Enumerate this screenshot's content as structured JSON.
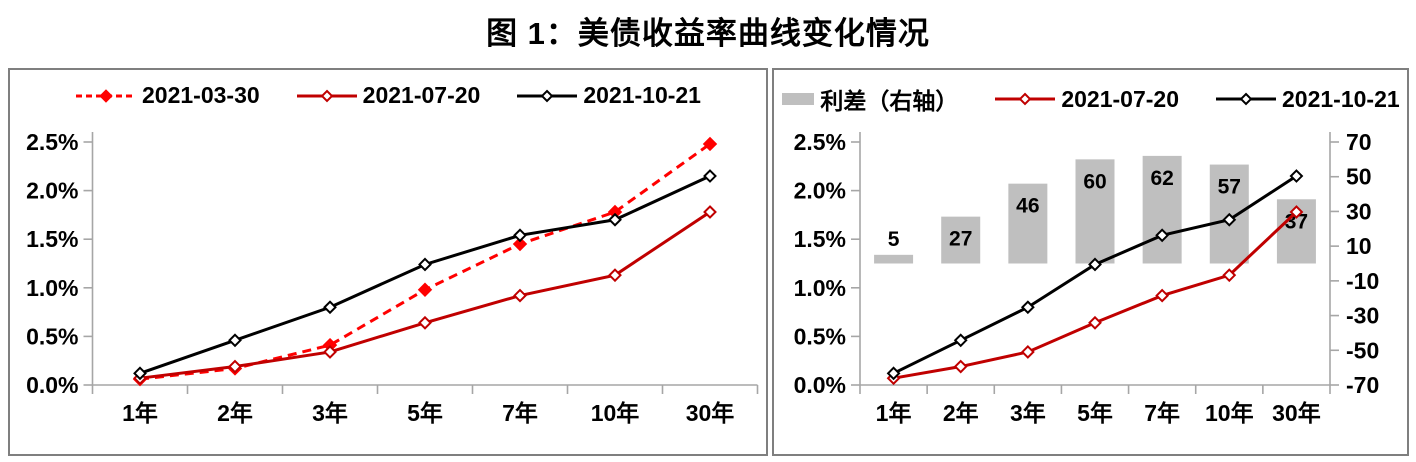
{
  "page": {
    "title": "图 1：美债收益率曲线变化情况"
  },
  "colors": {
    "red_bright": "#FF0000",
    "red_dark": "#C00000",
    "black": "#000000",
    "bar_gray": "#BFBFBF",
    "axis_gray": "#A6A6A6",
    "panel_border_gray": "#7F7F7F"
  },
  "chart_data": [
    {
      "type": "line",
      "panel": "left",
      "grid": false,
      "legend_position": "top",
      "categories": [
        "1年",
        "2年",
        "3年",
        "5年",
        "7年",
        "10年",
        "30年"
      ],
      "y_axis": {
        "min": 0,
        "max": 2.5,
        "tick_step": 0.5,
        "format": "percent",
        "tick_labels": [
          "0.0%",
          "0.5%",
          "1.0%",
          "1.5%",
          "2.0%",
          "2.5%"
        ]
      },
      "series": [
        {
          "name": "2021-03-30",
          "color": "#FF0000",
          "line_style": "dashed",
          "marker": "diamond-filled",
          "values": [
            0.06,
            0.17,
            0.41,
            0.98,
            1.45,
            1.78,
            2.48
          ]
        },
        {
          "name": "2021-07-20",
          "color": "#C00000",
          "line_style": "solid",
          "marker": "diamond-open",
          "values": [
            0.07,
            0.19,
            0.34,
            0.64,
            0.92,
            1.13,
            1.78
          ]
        },
        {
          "name": "2021-10-21",
          "color": "#000000",
          "line_style": "solid",
          "marker": "diamond-open",
          "values": [
            0.12,
            0.46,
            0.8,
            1.24,
            1.54,
            1.7,
            2.15
          ]
        }
      ]
    },
    {
      "type": "combo",
      "panel": "right",
      "grid": false,
      "legend_position": "top",
      "categories": [
        "1年",
        "2年",
        "3年",
        "5年",
        "7年",
        "10年",
        "30年"
      ],
      "y_axis_left": {
        "min": 0,
        "max": 2.5,
        "tick_step": 0.5,
        "format": "percent",
        "tick_labels": [
          "0.0%",
          "0.5%",
          "1.0%",
          "1.5%",
          "2.0%",
          "2.5%"
        ]
      },
      "y_axis_right": {
        "min": -70,
        "max": 70,
        "tick_step": 20,
        "tick_labels": [
          "-70",
          "-50",
          "-30",
          "-10",
          "10",
          "30",
          "50",
          "70"
        ]
      },
      "bar_series": {
        "name": "利差（右轴）",
        "axis": "right",
        "color": "#BFBFBF",
        "values": [
          5,
          27,
          46,
          60,
          62,
          57,
          37
        ],
        "data_labels": [
          "5",
          "27",
          "46",
          "60",
          "62",
          "57",
          "37"
        ]
      },
      "series": [
        {
          "name": "2021-07-20",
          "color": "#C00000",
          "line_style": "solid",
          "marker": "diamond-open",
          "axis": "left",
          "values": [
            0.07,
            0.19,
            0.34,
            0.64,
            0.92,
            1.13,
            1.78
          ]
        },
        {
          "name": "2021-10-21",
          "color": "#000000",
          "line_style": "solid",
          "marker": "diamond-open",
          "axis": "left",
          "values": [
            0.12,
            0.46,
            0.8,
            1.24,
            1.54,
            1.7,
            2.15
          ]
        }
      ]
    }
  ]
}
